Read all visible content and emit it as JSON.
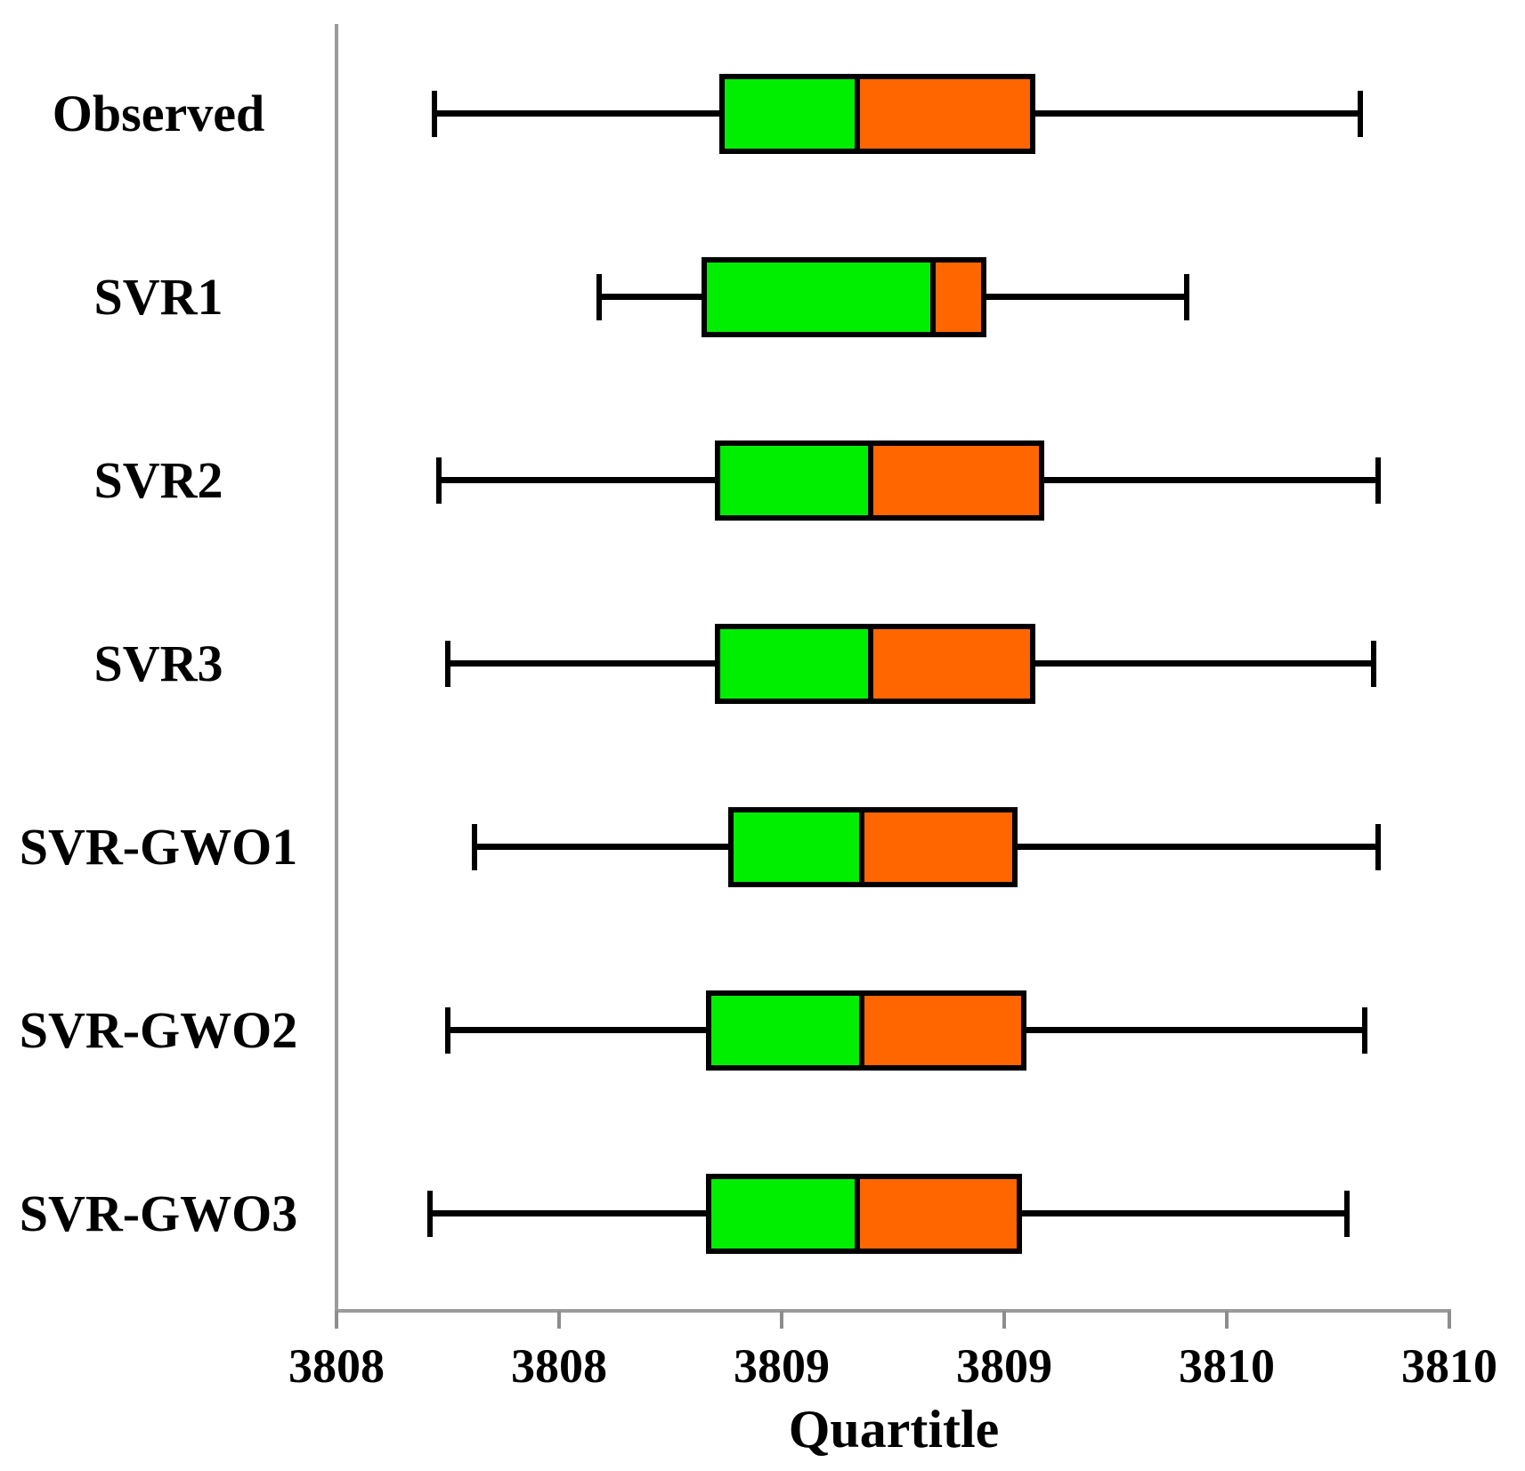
{
  "chart_data": {
    "type": "boxplot",
    "orientation": "horizontal",
    "title": "",
    "xlabel": "Quartitle",
    "ylabel": "",
    "grid": false,
    "legend": null,
    "x_axis": {
      "range": [
        3808.0,
        3810.5
      ],
      "ticks": [
        {
          "label": "3808",
          "value": 3808.0
        },
        {
          "label": "3808",
          "value": 3808.5
        },
        {
          "label": "3809",
          "value": 3809.0
        },
        {
          "label": "3809",
          "value": 3809.5
        },
        {
          "label": "3810",
          "value": 3810.0
        },
        {
          "label": "3810",
          "value": 3810.5
        }
      ]
    },
    "series": [
      {
        "name": "Observed",
        "whisker_low": 3808.22,
        "q1": 3808.86,
        "median": 3809.17,
        "q3": 3809.57,
        "whisker_high": 3810.3
      },
      {
        "name": "SVR1",
        "whisker_low": 3808.59,
        "q1": 3808.82,
        "median": 3809.34,
        "q3": 3809.46,
        "whisker_high": 3809.91
      },
      {
        "name": "SVR2",
        "whisker_low": 3808.23,
        "q1": 3808.85,
        "median": 3809.2,
        "q3": 3809.59,
        "whisker_high": 3810.34
      },
      {
        "name": "SVR3",
        "whisker_low": 3808.25,
        "q1": 3808.85,
        "median": 3809.2,
        "q3": 3809.57,
        "whisker_high": 3810.33
      },
      {
        "name": "SVR-GWO1",
        "whisker_low": 3808.31,
        "q1": 3808.88,
        "median": 3809.18,
        "q3": 3809.53,
        "whisker_high": 3810.34
      },
      {
        "name": "SVR-GWO2",
        "whisker_low": 3808.25,
        "q1": 3808.83,
        "median": 3809.18,
        "q3": 3809.55,
        "whisker_high": 3810.31
      },
      {
        "name": "SVR-GWO3",
        "whisker_low": 3808.21,
        "q1": 3808.83,
        "median": 3809.17,
        "q3": 3809.54,
        "whisker_high": 3810.27
      }
    ],
    "colors": {
      "lower_box": "#00EE00",
      "upper_box": "#FF6600",
      "line": "#000000",
      "axis": "#9B9B9B"
    }
  }
}
